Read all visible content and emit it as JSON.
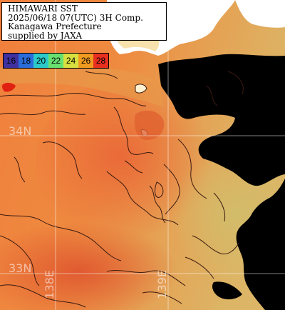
{
  "title": {
    "line1": "HIMAWARI SST",
    "line2": "2025/06/18 07(UTC) 3H Comp.",
    "line3": "Kanagawa Prefecture",
    "line4": "supplied by JAXA"
  },
  "legend": {
    "ticks": [
      "16",
      "18",
      "20",
      "22",
      "24",
      "26",
      "28"
    ],
    "colors": [
      "#4030a0",
      "#2a6cdb",
      "#2bc9c9",
      "#68e070",
      "#d8e040",
      "#f09a20",
      "#e83020"
    ]
  },
  "grid": {
    "lat_labels": [
      "34N",
      "33N"
    ],
    "lon_labels": [
      "138E",
      "139E"
    ]
  },
  "colors": {
    "sea_warm": "#f0803a",
    "sea_mid": "#e8a050",
    "sea_cool": "#d8b060",
    "land": "#ffffff",
    "cloud": "#000000",
    "contour": "#3a1a10",
    "coastline_red": "#e02010"
  }
}
